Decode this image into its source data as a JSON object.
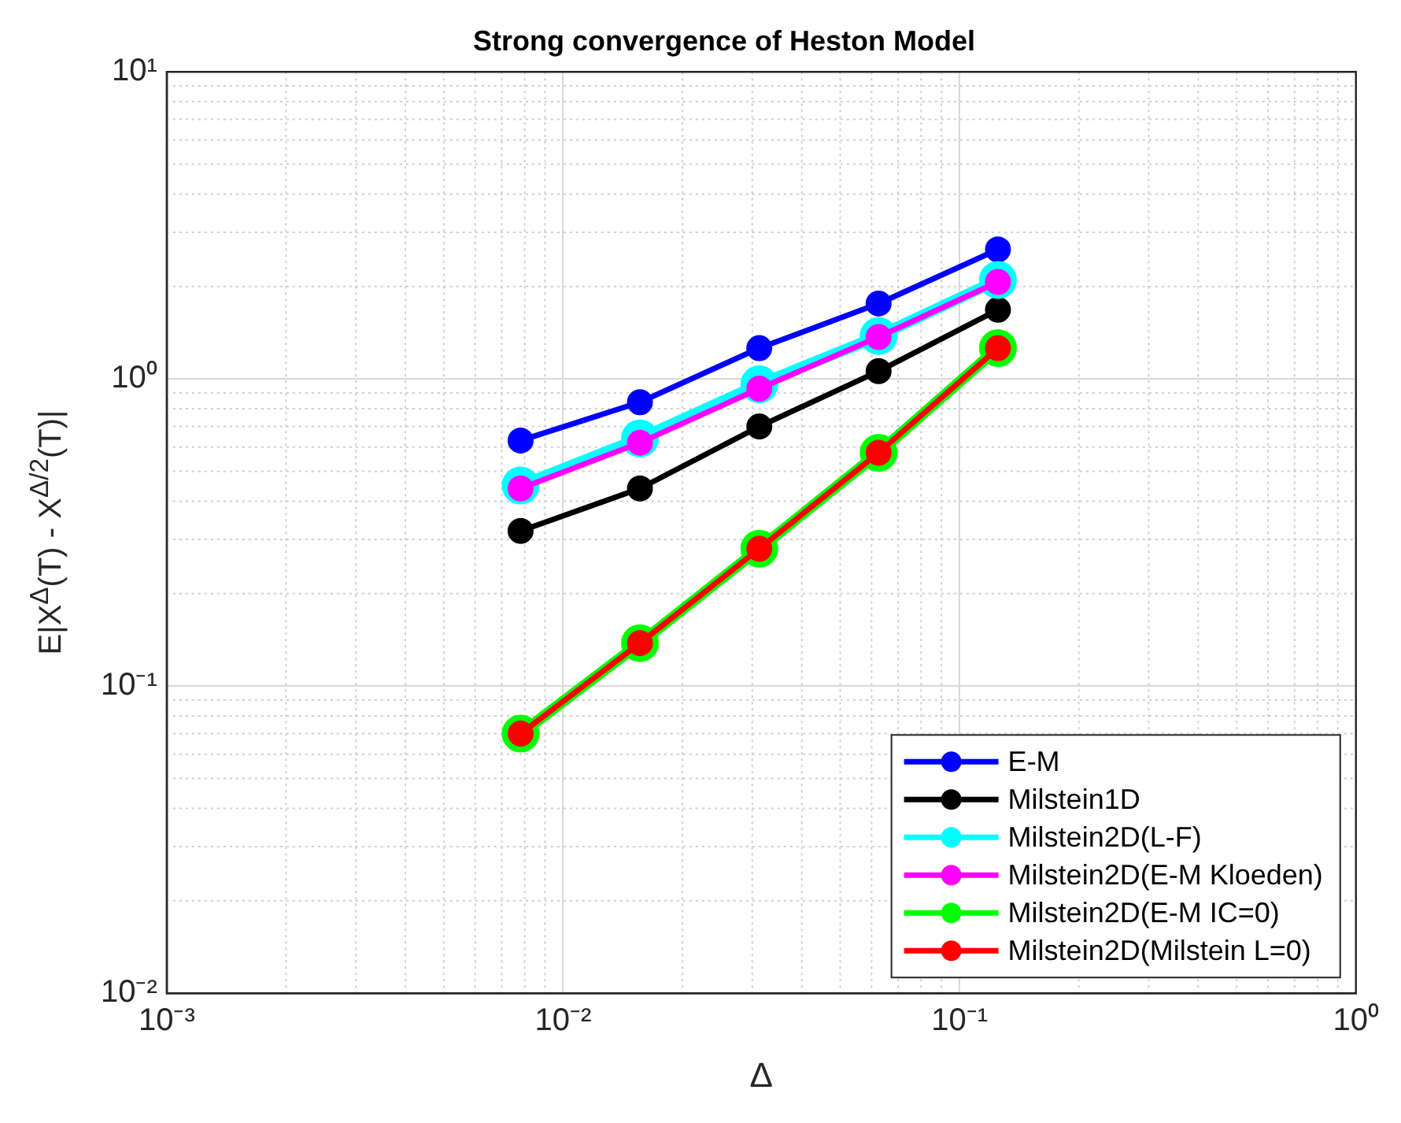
{
  "chart_data": {
    "type": "line",
    "title": "Strong convergence of Heston Model",
    "xlabel": "Δ",
    "ylabel": "E|X$^{Δ}$(T) - X$^{Δ/2}$(T)|",
    "x": [
      0.0078125,
      0.015625,
      0.03125,
      0.0625,
      0.125
    ],
    "series": [
      {
        "name": "E-M",
        "color": "#0000ff",
        "values": [
          0.63,
          0.84,
          1.26,
          1.76,
          2.64
        ]
      },
      {
        "name": "Milstein1D",
        "color": "#000000",
        "values": [
          0.32,
          0.44,
          0.7,
          1.06,
          1.68
        ]
      },
      {
        "name": "Milstein2D(L-F)",
        "color": "#00ffff",
        "values": [
          0.45,
          0.64,
          0.96,
          1.38,
          2.1
        ]
      },
      {
        "name": "Milstein2D(E-M Kloeden)",
        "color": "#ff00ff",
        "values": [
          0.44,
          0.62,
          0.93,
          1.37,
          2.07
        ]
      },
      {
        "name": "Milstein2D(E-M IC=0)",
        "color": "#00ff00",
        "values": [
          0.07,
          0.138,
          0.28,
          0.575,
          1.26
        ]
      },
      {
        "name": "Milstein2D(Milstein L=0)",
        "color": "#ff0000",
        "values": [
          0.07,
          0.138,
          0.28,
          0.575,
          1.26
        ]
      }
    ],
    "log": "xy",
    "xlim": [
      0.001,
      1
    ],
    "ylim": [
      0.01,
      10
    ],
    "xticks": [
      {
        "value": 0.001,
        "label": "10⁻³"
      },
      {
        "value": 0.01,
        "label": "10⁻²"
      },
      {
        "value": 0.1,
        "label": "10⁻¹"
      },
      {
        "value": 1,
        "label": "10⁰"
      }
    ],
    "yticks": [
      {
        "value": 0.01,
        "label": "10⁻²"
      },
      {
        "value": 0.1,
        "label": "10⁻¹"
      },
      {
        "value": 1,
        "label": "10⁰"
      },
      {
        "value": 10,
        "label": "10¹"
      }
    ],
    "grid": true,
    "legend": "bottom right",
    "marker": "circle",
    "line_style": "solid"
  }
}
